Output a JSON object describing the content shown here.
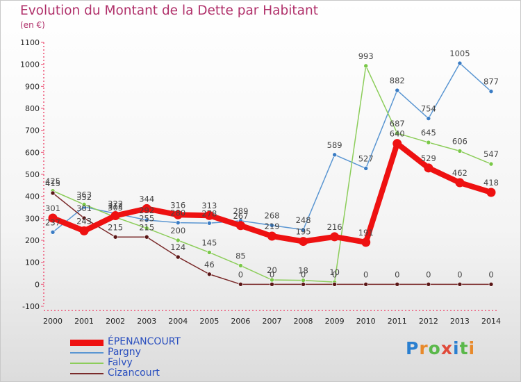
{
  "header": {
    "title": "Evolution du Montant de la Dette par Habitant",
    "unit": "(en €)"
  },
  "brand": {
    "text": "Proxiti",
    "colors": [
      "#2a7fd0",
      "#e8892a",
      "#5ab84a",
      "#e04a3a",
      "#2a7fd0",
      "#5ab84a",
      "#e8892a"
    ]
  },
  "chart_data": {
    "type": "line",
    "title": "Evolution du Montant de la Dette par Habitant",
    "ylabel": "(en €)",
    "xlabel": "",
    "x": [
      "2000",
      "2001",
      "2002",
      "2003",
      "2004",
      "2005",
      "2006",
      "2007",
      "2008",
      "2009",
      "2010",
      "2011",
      "2012",
      "2013",
      "2014"
    ],
    "yticks": [
      "-100",
      "0",
      "100",
      "200",
      "300",
      "400",
      "500",
      "600",
      "700",
      "800",
      "900",
      "1000",
      "1100"
    ],
    "ylim": [
      -100,
      1100
    ],
    "grid": false,
    "legend_position": "bottom-left",
    "series": [
      {
        "name": "ÉPENANCOURT",
        "color": "#ee1111",
        "values": [
          301,
          243,
          312,
          344,
          316,
          313,
          267,
          219,
          195,
          216,
          191,
          640,
          529,
          462,
          418
        ],
        "labels": [
          "301",
          "243",
          "312",
          "344",
          "316",
          "313",
          "267",
          "219",
          "195",
          "216",
          "191",
          "640",
          "529",
          "462",
          "418"
        ]
      },
      {
        "name": "Pargny",
        "color": "#5a96d2",
        "values": [
          237,
          352,
          322,
          292,
          280,
          278,
          289,
          268,
          248,
          589,
          527,
          882,
          754,
          1005,
          877
        ],
        "labels": [
          "237",
          "352",
          "322",
          "292",
          "280",
          "278",
          "289",
          "268",
          "248",
          "589",
          "527",
          "882",
          "754",
          "1005",
          "877"
        ]
      },
      {
        "name": "Falvy",
        "color": "#8ccd5a",
        "values": [
          425,
          363,
          305,
          255,
          200,
          145,
          85,
          20,
          18,
          10,
          993,
          687,
          645,
          606,
          547
        ],
        "labels": [
          "425",
          "363",
          "305",
          "255",
          "200",
          "145",
          "85",
          "20",
          "18",
          "10",
          "993",
          "687",
          "645",
          "606",
          "547"
        ]
      },
      {
        "name": "Cizancourt",
        "color": "#7a2a2a",
        "values": [
          415,
          301,
          215,
          215,
          124,
          46,
          0,
          0,
          0,
          0,
          0,
          0,
          0,
          0,
          0
        ],
        "labels": [
          "415",
          "301",
          "215",
          "215",
          "124",
          "46",
          "0",
          "0",
          "0",
          "0",
          "0",
          "0",
          "0",
          "0",
          "0"
        ]
      }
    ]
  }
}
